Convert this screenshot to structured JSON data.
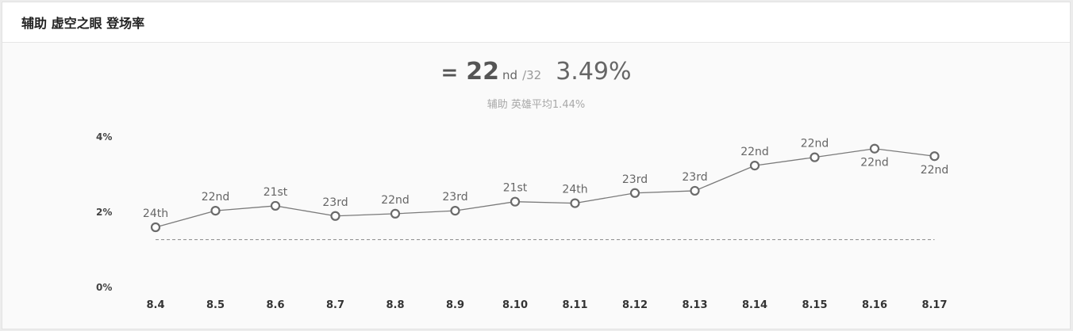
{
  "header": {
    "title": "辅助 虚空之眼 登场率"
  },
  "summary": {
    "equal_sign": "=",
    "rank": "22",
    "rank_suffix": "nd",
    "rank_total": "/32",
    "rate": "3.49%",
    "subline": "辅助 英雄平均1.44%"
  },
  "chart_data": {
    "type": "line",
    "title": "",
    "xlabel": "",
    "ylabel": "",
    "categories": [
      "8.4",
      "8.5",
      "8.6",
      "8.7",
      "8.8",
      "8.9",
      "8.10",
      "8.11",
      "8.12",
      "8.13",
      "8.14",
      "8.15",
      "8.16",
      "8.17"
    ],
    "y_ticks": [
      "4%",
      "2%",
      "0%"
    ],
    "ylim": [
      0,
      4
    ],
    "series": [
      {
        "values": [
          1.6,
          2.04,
          2.17,
          1.9,
          1.96,
          2.04,
          2.28,
          2.24,
          2.51,
          2.57,
          3.24,
          3.46,
          3.69,
          3.49
        ],
        "point_labels": [
          "24th",
          "22nd",
          "21st",
          "23rd",
          "22nd",
          "23rd",
          "21st",
          "24th",
          "23rd",
          "23rd",
          "22nd",
          "22nd",
          "22nd",
          "22nd"
        ],
        "label_positions": [
          "above",
          "above",
          "above",
          "above",
          "above",
          "above",
          "above",
          "above",
          "above",
          "above",
          "above",
          "above",
          "below",
          "below"
        ],
        "color": "#7a7a7a"
      }
    ],
    "average_line": {
      "value": 1.44,
      "style": "dashed",
      "color": "#888888"
    },
    "grid": false,
    "legend": "none"
  }
}
